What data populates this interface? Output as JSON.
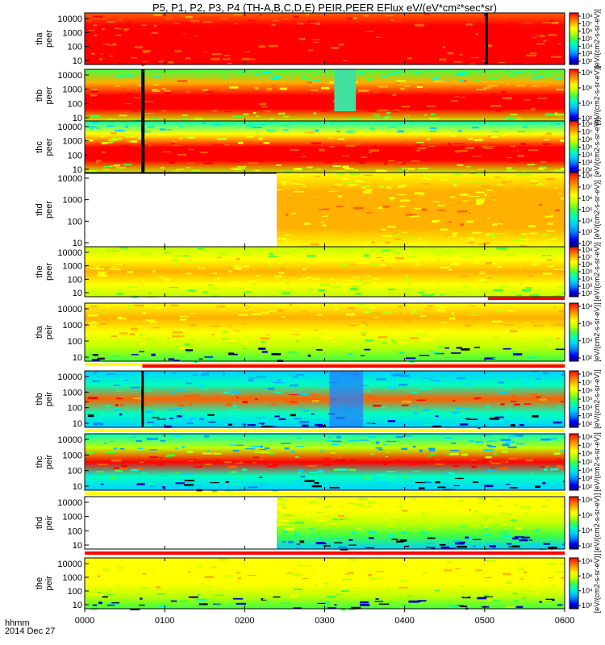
{
  "title": "P5, P1, P2, P3, P4 (TH-A,B,C,D,E) PEIR,PEER EFlux eV/(eV*cm²*sec*sr)",
  "xaxis": {
    "ticks": [
      "0000",
      "0100",
      "0200",
      "0300",
      "0400",
      "0500",
      "0600"
    ],
    "row_label": "hhmm",
    "date_label": "2014 Dec 27"
  },
  "colorbar_unit": "[eV/(cm2-s-sr-eV)]",
  "palette": [
    "#000080",
    "#0000ff",
    "#0080ff",
    "#00d0ff",
    "#00ffc0",
    "#40ff40",
    "#c0ff00",
    "#ffff00",
    "#ffb000",
    "#ff6000",
    "#ff0000"
  ],
  "chart_data": {
    "type": "heatmap",
    "x_range": [
      "0000",
      "0600"
    ],
    "y_scale": "log",
    "panels": [
      {
        "probe": "tha",
        "species": "peer",
        "yticks": [
          "10000",
          "1000",
          "100",
          "10"
        ],
        "cbar_ticks": [
          "10⁸",
          "10⁷",
          "10⁶",
          "10⁵",
          "10⁴",
          "10³",
          "10²"
        ],
        "data_start_hour": 0,
        "status_bar": "none"
      },
      {
        "probe": "thb",
        "species": "peer",
        "yticks": [
          "10000",
          "1000",
          "100",
          "10"
        ],
        "cbar_ticks": [
          "10⁸",
          "10⁶",
          "10⁴",
          "10²"
        ],
        "data_start_hour": 0,
        "status_bar": "none"
      },
      {
        "probe": "thc",
        "species": "peer",
        "yticks": [
          "10000",
          "1000",
          "100",
          "10"
        ],
        "cbar_ticks": [
          "10⁸",
          "10⁷",
          "10⁶",
          "10⁵",
          "10⁴",
          "10³",
          "10²"
        ],
        "data_start_hour": 0,
        "status_bar": "none"
      },
      {
        "probe": "thd",
        "species": "peer",
        "yticks": [
          "10000",
          "1000",
          "100",
          "10"
        ],
        "cbar_ticks": [
          "10⁸",
          "10⁷",
          "10⁶",
          "10⁵",
          "10⁴",
          "10³",
          "10²"
        ],
        "data_start_hour": 2.4,
        "status_bar": "none"
      },
      {
        "probe": "the",
        "species": "peer",
        "yticks": [
          "10000",
          "1000",
          "100",
          "10"
        ],
        "cbar_ticks": [
          "10⁸",
          "10⁷",
          "10⁶",
          "10⁵",
          "10⁴",
          "10³",
          "10²"
        ],
        "data_start_hour": 0,
        "status_bar": "red from 0505"
      },
      {
        "probe": "tha",
        "species": "peir",
        "yticks": [
          "10000",
          "1000",
          "100",
          "10"
        ],
        "cbar_ticks": [
          "10⁸",
          "10⁶",
          "10⁴",
          "10²"
        ],
        "data_start_hour": 0,
        "status_bar": "yellow, red from 0007"
      },
      {
        "probe": "thb",
        "species": "peir",
        "yticks": [
          "10000",
          "1000",
          "100",
          "10"
        ],
        "cbar_ticks": [
          "10⁸",
          "10⁷",
          "10⁶",
          "10⁵",
          "10⁴",
          "10³",
          "10²"
        ],
        "data_start_hour": 0,
        "status_bar": "yellow"
      },
      {
        "probe": "thc",
        "species": "peir",
        "yticks": [
          "10000",
          "1000",
          "100",
          "10"
        ],
        "cbar_ticks": [
          "10⁸",
          "10⁷",
          "10⁶",
          "10⁵",
          "10⁴",
          "10³",
          "10²"
        ],
        "data_start_hour": 0,
        "status_bar": "yellow"
      },
      {
        "probe": "thd",
        "species": "peir",
        "yticks": [
          "10000",
          "1000",
          "100",
          "10"
        ],
        "cbar_ticks": [
          "10⁸",
          "10⁶",
          "10⁴",
          "10²"
        ],
        "data_start_hour": 2.4,
        "status_bar": "red"
      },
      {
        "probe": "the",
        "species": "peir",
        "yticks": [
          "10000",
          "1000",
          "100",
          "10"
        ],
        "cbar_ticks": [
          "10⁸",
          "10⁶",
          "10⁴",
          "10²"
        ],
        "data_start_hour": 0,
        "status_bar": "none"
      }
    ]
  }
}
